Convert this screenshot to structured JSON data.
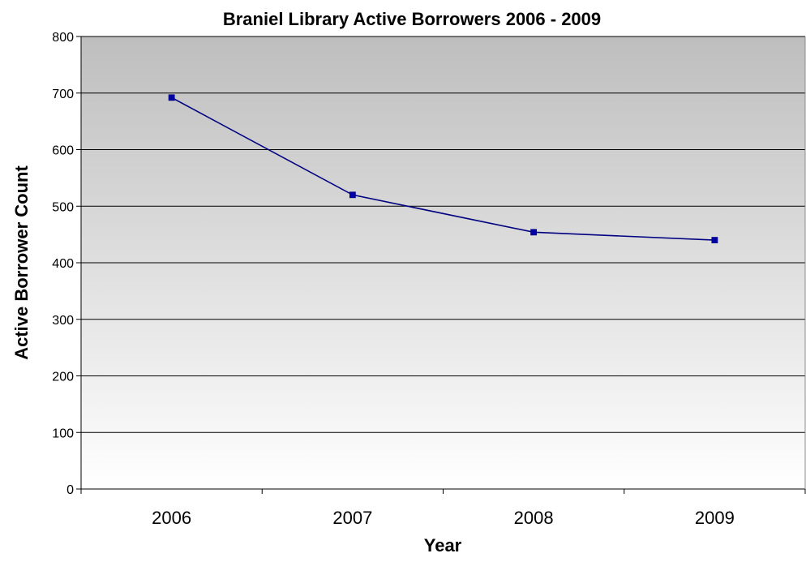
{
  "chart_data": {
    "type": "line",
    "title": "Braniel Library Active Borrowers 2006 - 2009",
    "xlabel": "Year",
    "ylabel": "Active Borrower Count",
    "categories": [
      "2006",
      "2007",
      "2008",
      "2009"
    ],
    "series": [
      {
        "values": [
          692,
          520,
          454,
          440
        ]
      }
    ],
    "ylim": [
      0,
      800
    ],
    "yticks": [
      "0",
      "100",
      "200",
      "300",
      "400",
      "500",
      "600",
      "700",
      "800"
    ],
    "grid": true,
    "legend": "none",
    "colors": {
      "line": "#000080",
      "marker": "#0000A8",
      "plot_bg_top": "#BEBEBE",
      "plot_bg_bottom": "#FFFFFF",
      "gridline": "#000000"
    }
  }
}
